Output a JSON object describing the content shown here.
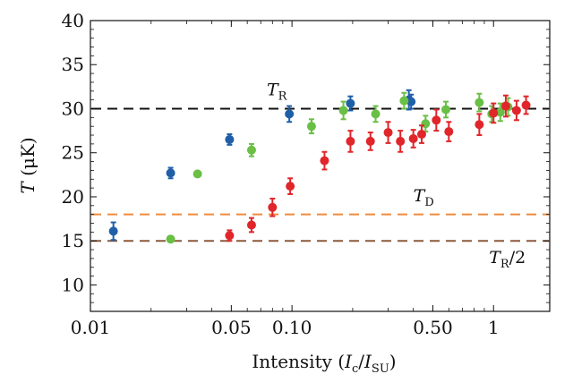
{
  "chart_data": {
    "type": "scatter",
    "title": "",
    "xlabel": {
      "prefix": "Intensity (",
      "var1": "I",
      "sub1": "c",
      "slash": "/",
      "var2": "I",
      "sub2": "SU",
      "suffix": ")"
    },
    "ylabel": {
      "var": "T",
      "unit": " (μK)"
    },
    "x_scale": "log",
    "xlim": [
      0.01,
      1.9
    ],
    "ylim": [
      7,
      40
    ],
    "x_ticks": [
      {
        "value": 0.01,
        "label": "0.01"
      },
      {
        "value": 0.05,
        "label": "0.05"
      },
      {
        "value": 0.1,
        "label": "0.10"
      },
      {
        "value": 0.5,
        "label": "0.50"
      },
      {
        "value": 1,
        "label": "1"
      }
    ],
    "y_ticks": [
      {
        "value": 10,
        "label": "10"
      },
      {
        "value": 15,
        "label": "15"
      },
      {
        "value": 20,
        "label": "20"
      },
      {
        "value": 25,
        "label": "25"
      },
      {
        "value": 30,
        "label": "30"
      },
      {
        "value": 35,
        "label": "35"
      },
      {
        "value": 40,
        "label": "40"
      }
    ],
    "reference_lines": [
      {
        "key": "TR",
        "y": 30,
        "color": "#111111",
        "label_var": "T",
        "label_sub": "R",
        "label_suffix": "",
        "label_x": 0.075,
        "label_y": 31.5
      },
      {
        "key": "TD",
        "y": 18,
        "color": "#ef8a3c",
        "label_var": "T",
        "label_sub": "D",
        "label_suffix": "",
        "label_x": 0.4,
        "label_y": 19.5
      },
      {
        "key": "TR2",
        "y": 15,
        "color": "#8a5a3c",
        "label_var": "T",
        "label_sub": "R",
        "label_suffix": "/2",
        "label_x": 0.95,
        "label_y": 12.5
      }
    ],
    "series": [
      {
        "color": "#1f5fa8",
        "points": [
          {
            "x": 0.013,
            "y": 16.1,
            "err": 1.0
          },
          {
            "x": 0.025,
            "y": 22.7,
            "err": 0.6
          },
          {
            "x": 0.049,
            "y": 26.5,
            "err": 0.6
          },
          {
            "x": 0.097,
            "y": 29.4,
            "err": 0.9
          },
          {
            "x": 0.195,
            "y": 30.6,
            "err": 0.8
          },
          {
            "x": 0.38,
            "y": 31.0,
            "err": 1.1
          },
          {
            "x": 0.39,
            "y": 30.8,
            "err": 0.8
          }
        ]
      },
      {
        "color": "#6abf45",
        "points": [
          {
            "x": 0.025,
            "y": 15.2,
            "err": 0.3
          },
          {
            "x": 0.034,
            "y": 22.6,
            "err": 0.3
          },
          {
            "x": 0.063,
            "y": 25.3,
            "err": 0.7
          },
          {
            "x": 0.125,
            "y": 28.0,
            "err": 0.8
          },
          {
            "x": 0.18,
            "y": 29.8,
            "err": 1.0
          },
          {
            "x": 0.26,
            "y": 29.4,
            "err": 0.9
          },
          {
            "x": 0.36,
            "y": 30.9,
            "err": 0.9
          },
          {
            "x": 0.46,
            "y": 28.3,
            "err": 0.9
          },
          {
            "x": 0.58,
            "y": 29.9,
            "err": 0.9
          },
          {
            "x": 0.85,
            "y": 30.7,
            "err": 1.0
          },
          {
            "x": 0.98,
            "y": 29.4,
            "err": 0.9
          },
          {
            "x": 1.08,
            "y": 29.6,
            "err": 1.0
          },
          {
            "x": 1.18,
            "y": 30.2,
            "err": 1.0
          }
        ]
      },
      {
        "color": "#e0262b",
        "points": [
          {
            "x": 0.049,
            "y": 15.6,
            "err": 0.6
          },
          {
            "x": 0.063,
            "y": 16.8,
            "err": 0.8
          },
          {
            "x": 0.08,
            "y": 18.8,
            "err": 1.0
          },
          {
            "x": 0.098,
            "y": 21.2,
            "err": 0.9
          },
          {
            "x": 0.145,
            "y": 24.1,
            "err": 1.0
          },
          {
            "x": 0.195,
            "y": 26.3,
            "err": 1.2
          },
          {
            "x": 0.245,
            "y": 26.3,
            "err": 1.0
          },
          {
            "x": 0.3,
            "y": 27.3,
            "err": 1.2
          },
          {
            "x": 0.345,
            "y": 26.3,
            "err": 1.2
          },
          {
            "x": 0.4,
            "y": 26.6,
            "err": 1.0
          },
          {
            "x": 0.44,
            "y": 27.1,
            "err": 1.0
          },
          {
            "x": 0.52,
            "y": 28.7,
            "err": 1.2
          },
          {
            "x": 0.6,
            "y": 27.4,
            "err": 1.1
          },
          {
            "x": 0.85,
            "y": 28.2,
            "err": 1.2
          },
          {
            "x": 1.0,
            "y": 29.5,
            "err": 1.1
          },
          {
            "x": 1.15,
            "y": 30.3,
            "err": 1.2
          },
          {
            "x": 1.3,
            "y": 29.8,
            "err": 1.1
          },
          {
            "x": 1.45,
            "y": 30.4,
            "err": 1.0
          }
        ]
      }
    ]
  }
}
